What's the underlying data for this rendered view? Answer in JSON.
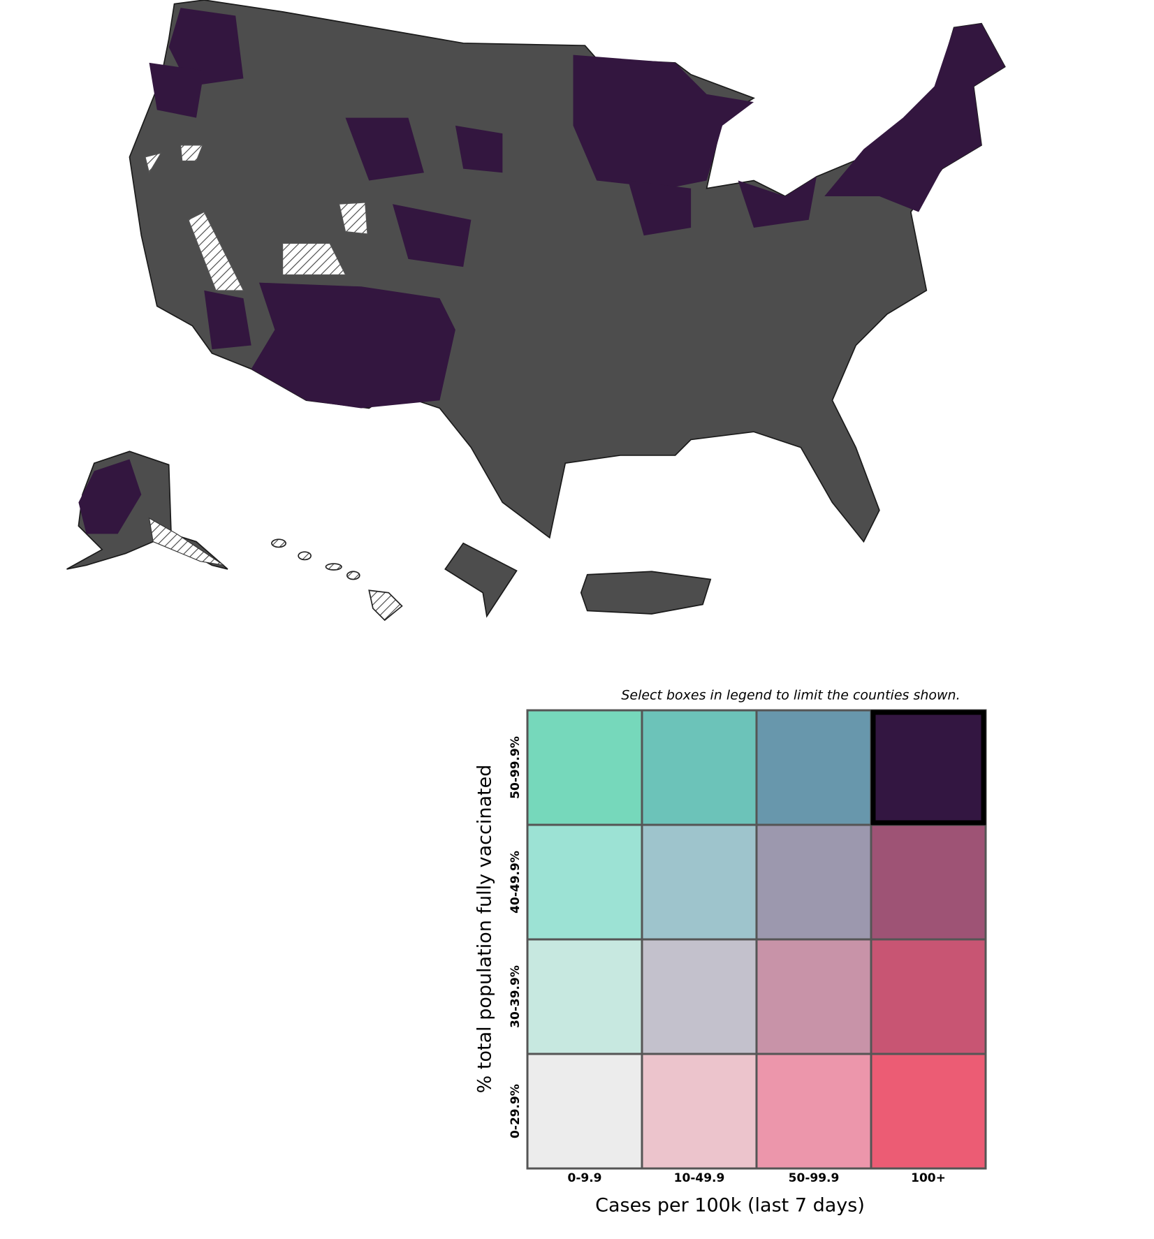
{
  "legend": {
    "note": "Select boxes in legend to limit the counties shown.",
    "x_label": "Cases per 100k (last 7 days)",
    "y_label": "% total population fully vaccinated",
    "columns": [
      "0-9.9",
      "10-49.9",
      "50-99.9",
      "100+"
    ],
    "rows": [
      "50-99.9%",
      "40-49.9%",
      "30-39.9%",
      "0-29.9%"
    ],
    "colors": [
      [
        "#76d8bb",
        "#6cc3b9",
        "#6897ac",
        "#331641"
      ],
      [
        "#9ce2d4",
        "#9ec4cc",
        "#9c98ae",
        "#9e5375"
      ],
      [
        "#c7e8e0",
        "#c3c1cc",
        "#c893a8",
        "#c85573"
      ],
      [
        "#ececec",
        "#ecc4cc",
        "#ec96ab",
        "#ec5c74"
      ]
    ],
    "selected": [
      0,
      3
    ]
  }
}
